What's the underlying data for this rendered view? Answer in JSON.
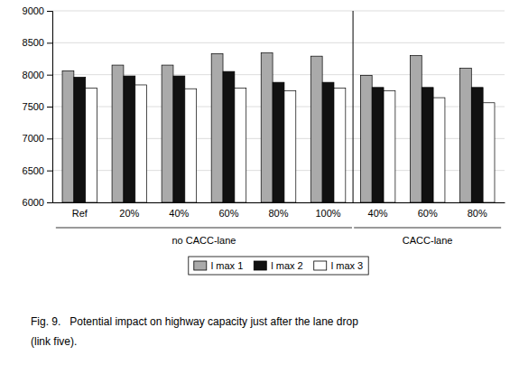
{
  "chart_data": {
    "type": "bar",
    "categories": [
      "Ref",
      "20%",
      "40%",
      "60%",
      "80%",
      "100%",
      "40%",
      "60%",
      "80%"
    ],
    "series": [
      {
        "name": "l max 1",
        "color": "#aaaaaa",
        "values": [
          8060,
          8150,
          8150,
          8330,
          8340,
          8290,
          7990,
          8300,
          8100
        ]
      },
      {
        "name": "l max 2",
        "color": "#111111",
        "values": [
          7960,
          7980,
          7980,
          8050,
          7880,
          7880,
          7800,
          7800,
          7800
        ]
      },
      {
        "name": "l max 3",
        "color": "#ffffff",
        "values": [
          7790,
          7840,
          7780,
          7790,
          7750,
          7790,
          7750,
          7640,
          7560
        ]
      }
    ],
    "ylim": [
      6000,
      9000
    ],
    "yticks": [
      6000,
      6500,
      7000,
      7500,
      8000,
      8500,
      9000
    ],
    "grid": true,
    "legend": "bottom",
    "annotations": [
      {
        "text": "no CACC-lane",
        "start": 0,
        "end": 5
      },
      {
        "text": "CACC-lane",
        "start": 6,
        "end": 8
      }
    ],
    "caption": [
      "Fig. 9.   Potential impact on highway capacity just after the lane drop",
      "(link five)."
    ]
  }
}
